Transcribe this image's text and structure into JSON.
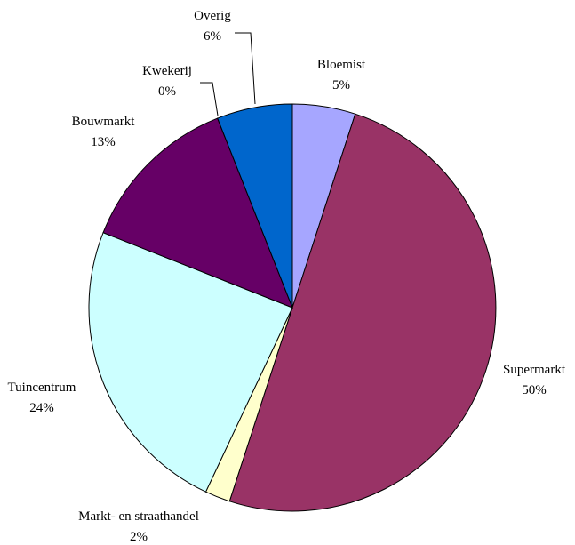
{
  "chart_data": {
    "type": "pie",
    "title": "",
    "slices": [
      {
        "label": "Bloemist",
        "value": 5,
        "display": "5%",
        "color": "#a6a6ff"
      },
      {
        "label": "Supermarkt",
        "value": 50,
        "display": "50%",
        "color": "#993366"
      },
      {
        "label": "Markt- en straathandel",
        "value": 2,
        "display": "2%",
        "color": "#ffffcc"
      },
      {
        "label": "Tuincentrum",
        "value": 24,
        "display": "24%",
        "color": "#ccffff"
      },
      {
        "label": "Bouwmarkt",
        "value": 13,
        "display": "13%",
        "color": "#660066"
      },
      {
        "label": "Kwekerij",
        "value": 0,
        "display": "0%",
        "color": "#ff8080"
      },
      {
        "label": "Overig",
        "value": 6,
        "display": "6%",
        "color": "#0066cc"
      }
    ],
    "start": "12 o'clock",
    "direction": "clockwise",
    "legend": "none",
    "data_labels": "outside"
  }
}
